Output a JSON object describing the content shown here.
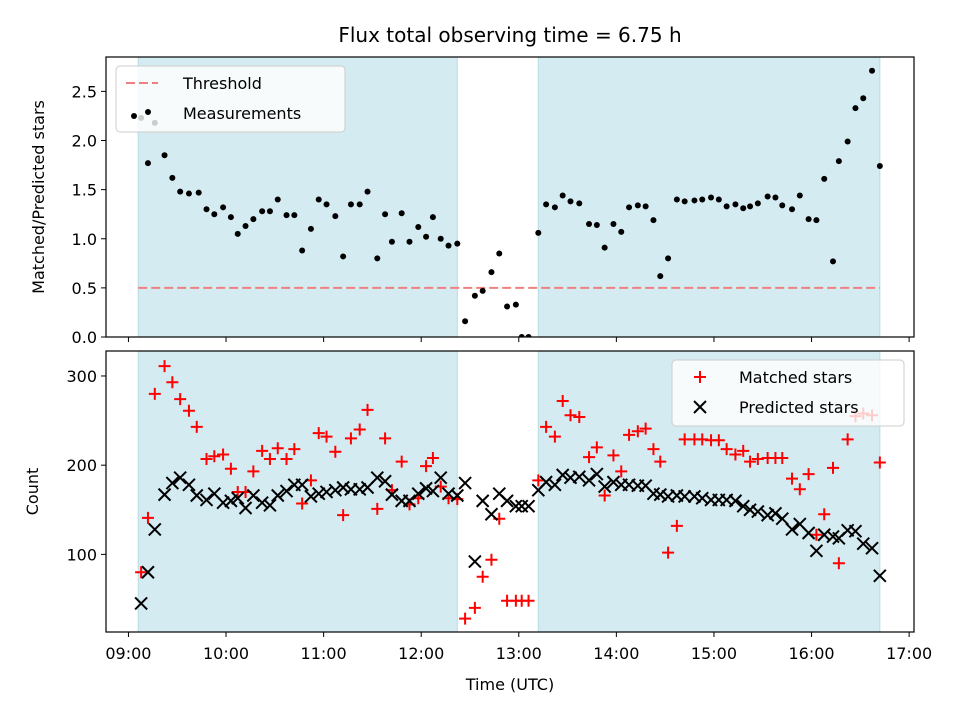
{
  "title": "Flux total observing time = 6.75 h",
  "chart_data": [
    {
      "type": "scatter",
      "panel": "top",
      "xlabel": "",
      "ylabel": "Matched/Predicted stars",
      "x_unit": "hours UTC",
      "xlim": [
        8.77,
        17.05
      ],
      "ylim": [
        0.0,
        2.85
      ],
      "yticks": [
        0.0,
        0.5,
        1.0,
        1.5,
        2.0,
        2.5
      ],
      "ytick_labels": [
        "0.0",
        "0.5",
        "1.0",
        "1.5",
        "2.0",
        "2.5"
      ],
      "legend_position": "upper left",
      "shaded_intervals": [
        [
          9.1,
          12.37
        ],
        [
          13.2,
          16.7
        ]
      ],
      "threshold": {
        "name": "Threshold",
        "value": 0.5,
        "color": "#f08080",
        "style": "dashed"
      },
      "series": [
        {
          "name": "Measurements",
          "color": "#000000",
          "marker": "dot",
          "x": [
            9.13,
            9.2,
            9.27,
            9.37,
            9.45,
            9.53,
            9.62,
            9.72,
            9.8,
            9.88,
            9.97,
            10.05,
            10.12,
            10.2,
            10.28,
            10.37,
            10.45,
            10.53,
            10.62,
            10.7,
            10.78,
            10.87,
            10.95,
            11.03,
            11.12,
            11.2,
            11.28,
            11.37,
            11.45,
            11.55,
            11.63,
            11.7,
            11.8,
            11.88,
            11.97,
            12.05,
            12.12,
            12.2,
            12.28,
            12.37,
            12.45,
            12.55,
            12.63,
            12.72,
            12.8,
            12.88,
            12.97,
            13.03,
            13.1,
            13.2,
            13.28,
            13.37,
            13.45,
            13.53,
            13.62,
            13.72,
            13.8,
            13.88,
            13.97,
            14.05,
            14.13,
            14.22,
            14.3,
            14.38,
            14.45,
            14.53,
            14.62,
            14.7,
            14.8,
            14.88,
            14.97,
            15.05,
            15.13,
            15.22,
            15.3,
            15.37,
            15.45,
            15.55,
            15.63,
            15.7,
            15.8,
            15.88,
            15.97,
            16.05,
            16.13,
            16.22,
            16.28,
            16.37,
            16.45,
            16.53,
            16.62,
            16.7
          ],
          "y": [
            2.23,
            1.77,
            2.18,
            1.85,
            1.62,
            1.48,
            1.46,
            1.47,
            1.3,
            1.25,
            1.32,
            1.22,
            1.05,
            1.13,
            1.2,
            1.28,
            1.28,
            1.4,
            1.24,
            1.24,
            0.88,
            1.1,
            1.4,
            1.35,
            1.23,
            0.82,
            1.35,
            1.35,
            1.48,
            0.8,
            1.25,
            0.97,
            1.26,
            0.97,
            1.12,
            1.02,
            1.22,
            1.0,
            0.93,
            0.95,
            0.16,
            0.42,
            0.47,
            0.66,
            0.85,
            0.31,
            0.33,
            0.0,
            0.0,
            1.06,
            1.35,
            1.32,
            1.44,
            1.38,
            1.36,
            1.15,
            1.14,
            0.91,
            1.15,
            1.07,
            1.32,
            1.34,
            1.33,
            1.19,
            0.62,
            0.8,
            1.4,
            1.38,
            1.39,
            1.4,
            1.42,
            1.4,
            1.33,
            1.35,
            1.31,
            1.33,
            1.36,
            1.43,
            1.42,
            1.34,
            1.3,
            1.44,
            1.2,
            1.19,
            1.61,
            0.77,
            1.79,
            1.99,
            2.33,
            2.43,
            2.71,
            1.74
          ]
        }
      ]
    },
    {
      "type": "scatter",
      "panel": "bottom",
      "xlabel": "Time (UTC)",
      "ylabel": "Count",
      "x_unit": "hours UTC",
      "xlim": [
        8.77,
        17.05
      ],
      "ylim": [
        13,
        328
      ],
      "yticks": [
        100,
        200,
        300
      ],
      "ytick_labels": [
        "100",
        "200",
        "300"
      ],
      "xticks": [
        9,
        10,
        11,
        12,
        13,
        14,
        15,
        16,
        17
      ],
      "xtick_labels": [
        "09:00",
        "10:00",
        "11:00",
        "12:00",
        "13:00",
        "14:00",
        "15:00",
        "16:00",
        "17:00"
      ],
      "legend_position": "upper right",
      "shaded_intervals": [
        [
          9.1,
          12.37
        ],
        [
          13.2,
          16.7
        ]
      ],
      "series": [
        {
          "name": "Matched stars",
          "color": "#ff0000",
          "marker": "plus",
          "x": [
            9.13,
            9.2,
            9.27,
            9.37,
            9.45,
            9.53,
            9.62,
            9.7,
            9.8,
            9.88,
            9.97,
            10.05,
            10.12,
            10.2,
            10.28,
            10.37,
            10.45,
            10.53,
            10.62,
            10.7,
            10.78,
            10.87,
            10.95,
            11.03,
            11.12,
            11.2,
            11.28,
            11.37,
            11.45,
            11.55,
            11.63,
            11.7,
            11.8,
            11.88,
            11.97,
            12.05,
            12.12,
            12.2,
            12.28,
            12.37,
            12.45,
            12.55,
            12.63,
            12.72,
            12.8,
            12.88,
            12.97,
            13.03,
            13.1,
            13.2,
            13.28,
            13.37,
            13.45,
            13.53,
            13.62,
            13.72,
            13.8,
            13.88,
            13.97,
            14.05,
            14.13,
            14.22,
            14.3,
            14.38,
            14.45,
            14.53,
            14.62,
            14.7,
            14.8,
            14.88,
            14.97,
            15.05,
            15.13,
            15.22,
            15.3,
            15.37,
            15.45,
            15.55,
            15.63,
            15.7,
            15.8,
            15.88,
            15.97,
            16.05,
            16.13,
            16.22,
            16.28,
            16.37,
            16.45,
            16.53,
            16.62,
            16.7
          ],
          "y": [
            80,
            141,
            280,
            311,
            293,
            274,
            261,
            243,
            207,
            210,
            212,
            196,
            170,
            170,
            193,
            216,
            207,
            219,
            207,
            218,
            157,
            183,
            236,
            232,
            215,
            144,
            230,
            240,
            262,
            151,
            230,
            172,
            204,
            156,
            163,
            199,
            208,
            176,
            163,
            162,
            28,
            40,
            75,
            94,
            140,
            48,
            48,
            48,
            48,
            183,
            243,
            232,
            272,
            256,
            254,
            209,
            220,
            166,
            211,
            193,
            234,
            238,
            241,
            218,
            204,
            102,
            132,
            229,
            229,
            229,
            228,
            228,
            218,
            212,
            216,
            204,
            207,
            208,
            208,
            208,
            185,
            173,
            190,
            122,
            145,
            197,
            90,
            229,
            255,
            258,
            256,
            203
          ]
        },
        {
          "name": "Predicted stars",
          "color": "#000000",
          "marker": "x",
          "x": [
            9.13,
            9.2,
            9.27,
            9.37,
            9.45,
            9.53,
            9.62,
            9.7,
            9.8,
            9.88,
            9.97,
            10.05,
            10.12,
            10.2,
            10.28,
            10.37,
            10.45,
            10.53,
            10.62,
            10.7,
            10.78,
            10.87,
            10.95,
            11.03,
            11.12,
            11.2,
            11.28,
            11.37,
            11.45,
            11.55,
            11.63,
            11.7,
            11.8,
            11.88,
            11.97,
            12.05,
            12.12,
            12.2,
            12.28,
            12.37,
            12.45,
            12.55,
            12.63,
            12.72,
            12.8,
            12.88,
            12.97,
            13.03,
            13.1,
            13.2,
            13.28,
            13.37,
            13.45,
            13.53,
            13.62,
            13.72,
            13.8,
            13.88,
            13.97,
            14.05,
            14.13,
            14.22,
            14.3,
            14.38,
            14.45,
            14.53,
            14.62,
            14.7,
            14.8,
            14.88,
            14.97,
            15.05,
            15.13,
            15.22,
            15.3,
            15.37,
            15.45,
            15.55,
            15.63,
            15.7,
            15.8,
            15.88,
            15.97,
            16.05,
            16.13,
            16.22,
            16.28,
            16.37,
            16.45,
            16.53,
            16.62,
            16.7
          ],
          "y": [
            45,
            80,
            128,
            167,
            180,
            186,
            178,
            166,
            161,
            168,
            158,
            160,
            163,
            152,
            166,
            158,
            155,
            166,
            171,
            178,
            178,
            165,
            168,
            170,
            172,
            175,
            173,
            173,
            175,
            186,
            182,
            167,
            160,
            160,
            168,
            174,
            171,
            186,
            168,
            166,
            180,
            92,
            160,
            145,
            168,
            160,
            154,
            154,
            154,
            172,
            181,
            178,
            189,
            186,
            187,
            183,
            190,
            176,
            181,
            178,
            178,
            177,
            177,
            168,
            167,
            165,
            166,
            165,
            165,
            163,
            161,
            161,
            161,
            160,
            154,
            150,
            148,
            144,
            146,
            140,
            128,
            134,
            124,
            104,
            122,
            120,
            118,
            127,
            126,
            112,
            107,
            76
          ]
        }
      ]
    }
  ]
}
